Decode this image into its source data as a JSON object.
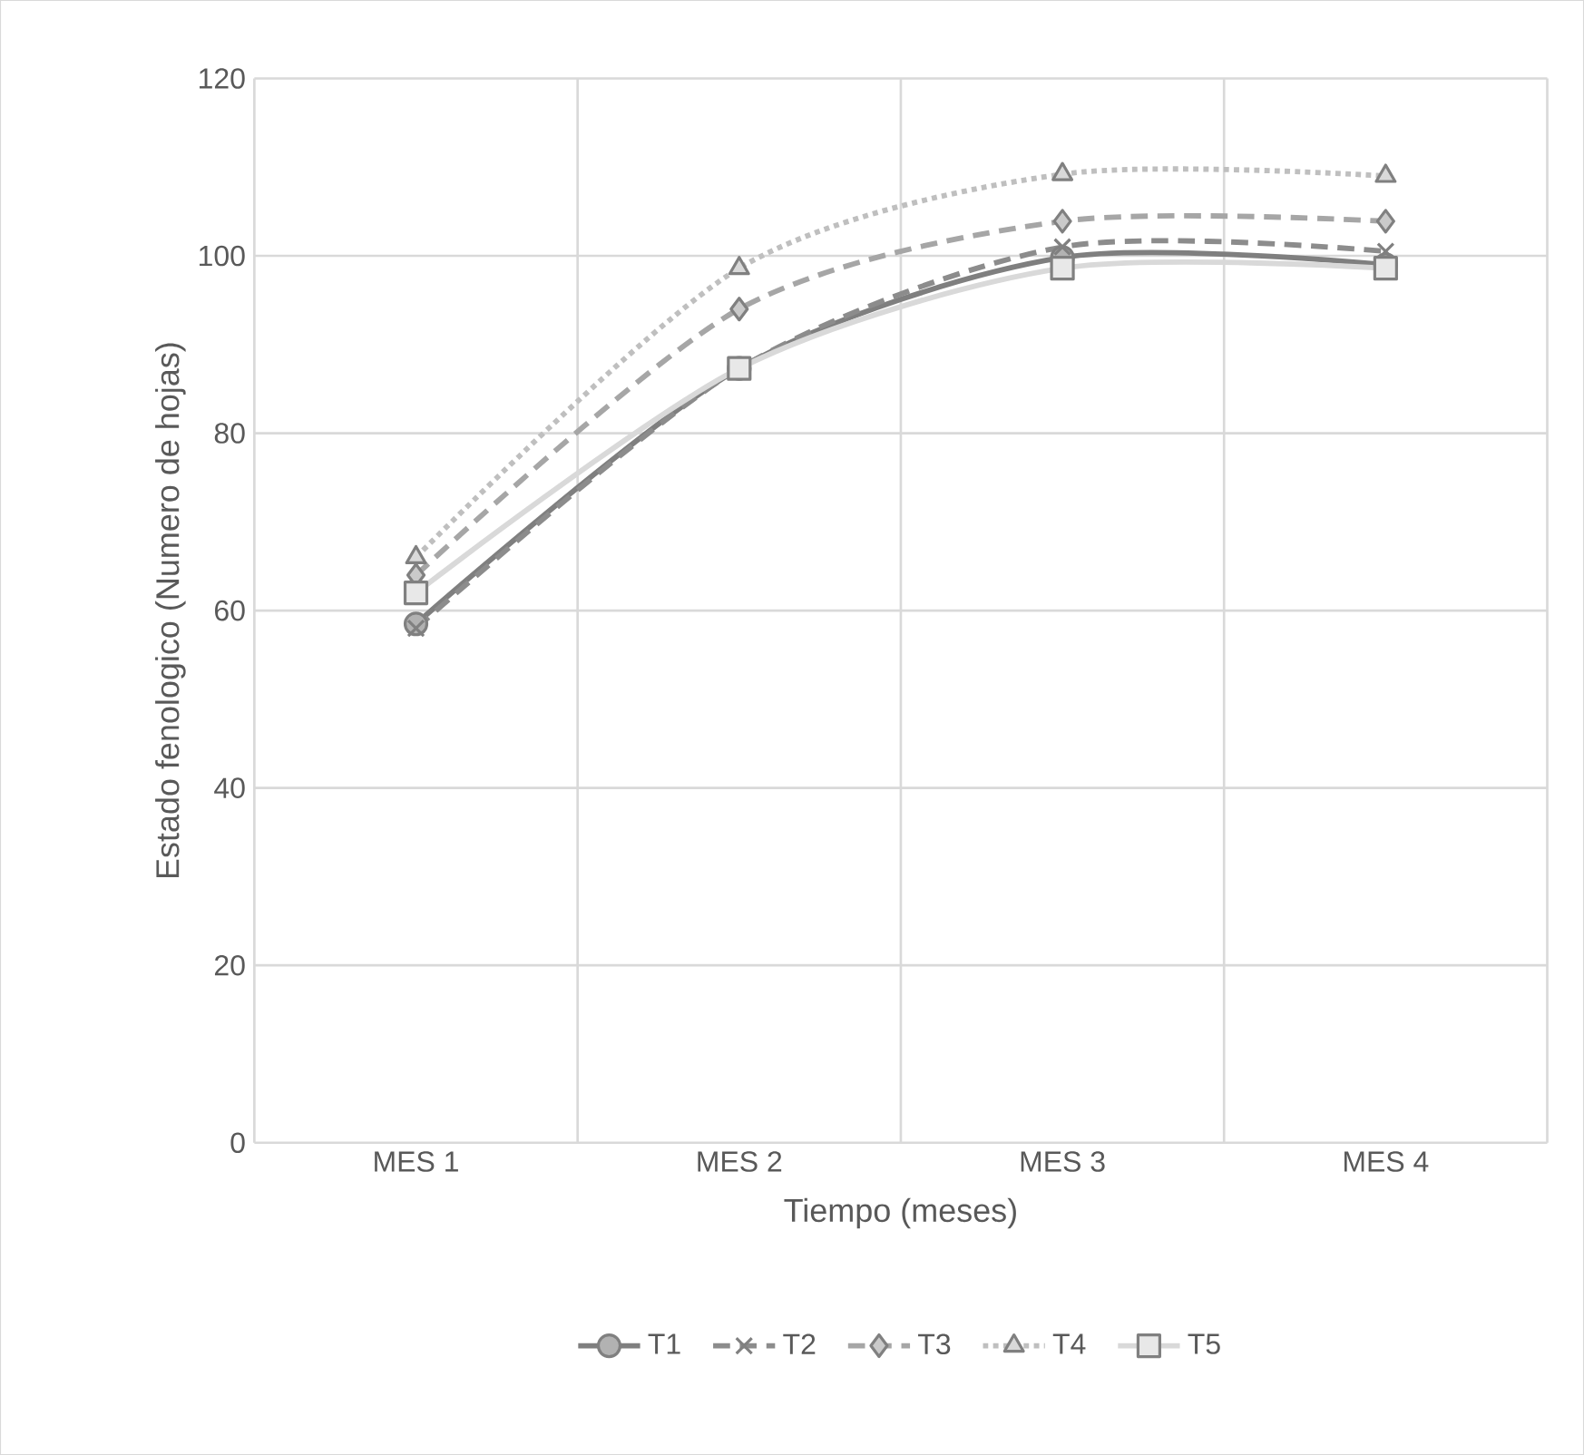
{
  "chart_data": {
    "type": "line",
    "xlabel": "Tiempo (meses)",
    "ylabel": "Estado fenologico (Numero de hojas)",
    "categories": [
      "MES 1",
      "MES 2",
      "MES 3",
      "MES 4"
    ],
    "series": [
      {
        "name": "T1",
        "color": "#7f7f7f",
        "marker": "circle",
        "line_style": "solid",
        "values": [
          58.5,
          87.3,
          99.8,
          99
        ]
      },
      {
        "name": "T2",
        "color": "#8c8c8c",
        "marker": "cross",
        "line_style": "dashed",
        "values": [
          58,
          87.3,
          101,
          100.5
        ]
      },
      {
        "name": "T3",
        "color": "#a6a6a6",
        "marker": "diamond",
        "line_style": "dashed",
        "values": [
          64,
          94,
          103.9,
          103.9
        ]
      },
      {
        "name": "T4",
        "color": "#bfbfbf",
        "marker": "triangle",
        "line_style": "dotted",
        "values": [
          66,
          98.6,
          109.2,
          109
        ]
      },
      {
        "name": "T5",
        "color": "#d9d9d9",
        "marker": "square",
        "line_style": "solid",
        "values": [
          62,
          87.3,
          98.6,
          98.6
        ]
      }
    ],
    "ylim": [
      0,
      120
    ],
    "yticks": [
      0,
      20,
      40,
      60,
      80,
      100,
      120
    ],
    "grid": true,
    "legend": "bottom"
  }
}
